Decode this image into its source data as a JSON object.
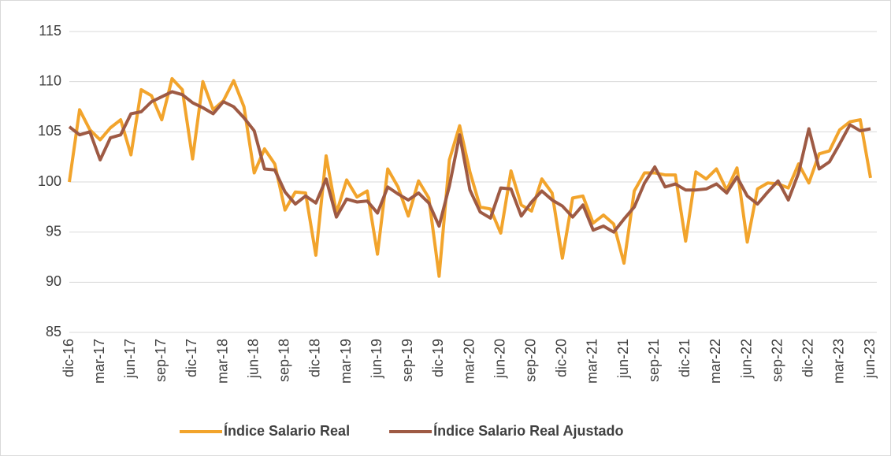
{
  "chart_data": {
    "type": "line",
    "categories": [
      "dic-16",
      null,
      null,
      "mar-17",
      null,
      null,
      "jun-17",
      null,
      null,
      "sep-17",
      null,
      null,
      "dic-17",
      null,
      null,
      "mar-18",
      null,
      null,
      "jun-18",
      null,
      null,
      "sep-18",
      null,
      null,
      "dic-18",
      null,
      null,
      "mar-19",
      null,
      null,
      "jun-19",
      null,
      null,
      "sep-19",
      null,
      null,
      "dic-19",
      null,
      null,
      "mar-20",
      null,
      null,
      "jun-20",
      null,
      null,
      "sep-20",
      null,
      null,
      "dic-20",
      null,
      null,
      "mar-21",
      null,
      null,
      "jun-21",
      null,
      null,
      "sep-21",
      null,
      null,
      "dic-21",
      null,
      null,
      "mar-22",
      null,
      null,
      "jun-22",
      null,
      null,
      "sep-22",
      null,
      null,
      "dic-22",
      null,
      null,
      "mar-23",
      null,
      null,
      "jun-23"
    ],
    "series": [
      {
        "name": "Índice Salario Real",
        "color": "#F2A42C",
        "values": [
          100.0,
          107.2,
          105.2,
          104.2,
          105.4,
          106.2,
          102.7,
          109.2,
          108.6,
          106.2,
          110.3,
          109.2,
          102.3,
          110.0,
          107.2,
          108.1,
          110.1,
          107.5,
          100.9,
          103.3,
          101.8,
          97.2,
          99.0,
          98.9,
          92.7,
          102.6,
          96.9,
          100.2,
          98.5,
          99.1,
          92.8,
          101.3,
          99.5,
          96.6,
          100.1,
          98.4,
          90.6,
          102.2,
          105.6,
          101.0,
          97.5,
          97.3,
          94.9,
          101.1,
          97.7,
          97.1,
          100.3,
          98.9,
          92.4,
          98.4,
          98.6,
          95.9,
          96.7,
          95.8,
          91.9,
          99.1,
          100.9,
          100.9,
          100.7,
          100.7,
          94.1,
          101.0,
          100.3,
          101.3,
          99.2,
          101.4,
          94.0,
          99.3,
          99.9,
          99.8,
          99.4,
          101.8,
          99.9,
          102.8,
          103.1,
          105.2,
          106.0,
          106.2,
          100.4
        ]
      },
      {
        "name": "Índice Salario Real Ajustado",
        "color": "#9E5A44",
        "values": [
          105.5,
          104.7,
          105.0,
          102.2,
          104.4,
          104.7,
          106.8,
          107.0,
          108.0,
          108.5,
          109.0,
          108.7,
          107.9,
          107.4,
          106.8,
          108.0,
          107.5,
          106.4,
          105.1,
          101.3,
          101.2,
          99.0,
          97.8,
          98.6,
          97.9,
          100.3,
          96.5,
          98.3,
          98.0,
          98.1,
          96.9,
          99.5,
          98.8,
          98.2,
          98.9,
          97.9,
          95.6,
          99.6,
          104.7,
          99.2,
          97.0,
          96.4,
          99.4,
          99.3,
          96.6,
          98.0,
          99.1,
          98.2,
          97.6,
          96.5,
          97.7,
          95.2,
          95.6,
          95.0,
          96.3,
          97.5,
          99.9,
          101.5,
          99.5,
          99.8,
          99.2,
          99.2,
          99.3,
          99.8,
          98.9,
          100.5,
          98.6,
          97.8,
          99.0,
          100.1,
          98.2,
          100.9,
          105.3,
          101.3,
          102.0,
          103.8,
          105.7,
          105.1,
          105.3
        ]
      }
    ],
    "ylim": [
      85,
      115
    ],
    "yticks": [
      85,
      90,
      95,
      100,
      105,
      110,
      115
    ],
    "grid": true,
    "legend": "bottom"
  }
}
